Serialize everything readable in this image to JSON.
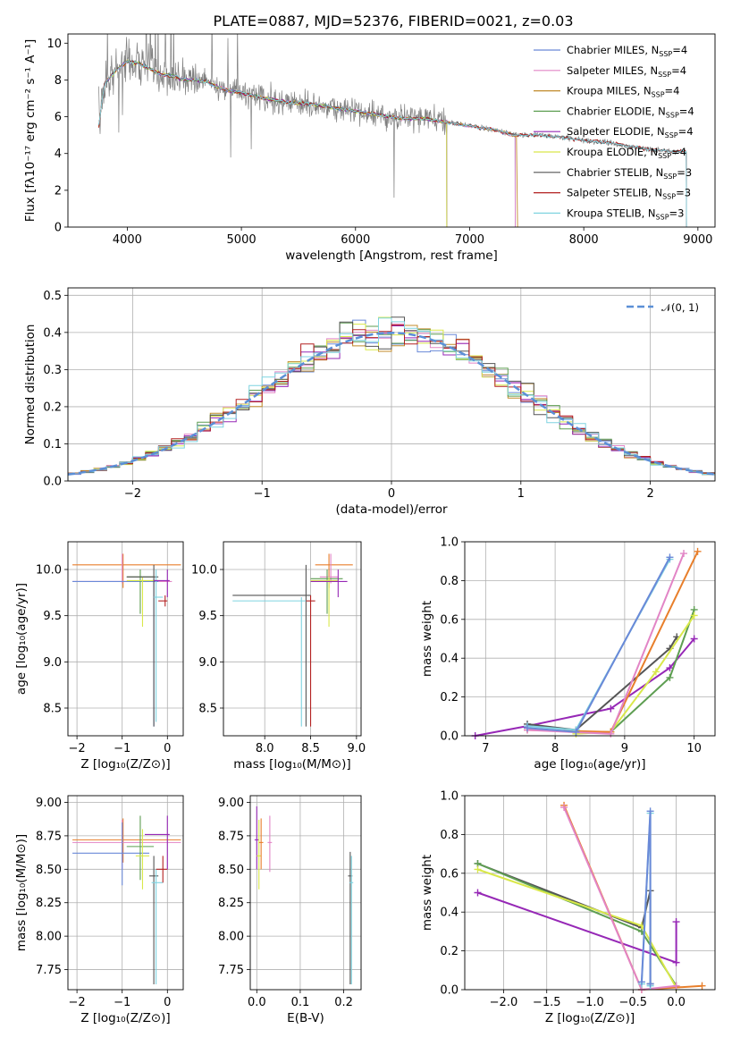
{
  "figure_title": "PLATE=0887, MJD=52376, FIBERID=0021, z=0.03",
  "colors": [
    "#6a89d8",
    "#e285c6",
    "#c08a2a",
    "#5e9e52",
    "#9628b6",
    "#d9e84a",
    "#555555",
    "#b32121",
    "#7fd3e0"
  ],
  "extra_colors": {
    "orange": "#e87f2b",
    "gray": "#808080",
    "normal": "#5b8fd6",
    "grid": "#b0b0b0"
  },
  "chart_data": [
    {
      "id": "spectrum",
      "type": "line",
      "title": "PLATE=0887, MJD=52376, FIBERID=0021, z=0.03",
      "xlabel": "wavelength [Angstrom, rest frame]",
      "ylabel": "Flux [fλ10⁻¹⁷ erg cm⁻² s⁻¹ A⁻¹]",
      "xlim": [
        3480,
        9150
      ],
      "ylim": [
        0,
        10.5
      ],
      "xticks": [
        "4000",
        "5000",
        "6000",
        "7000",
        "8000",
        "9000"
      ],
      "yticks": [
        "0",
        "2",
        "4",
        "6",
        "8",
        "10"
      ],
      "grid": false,
      "legend_position": "top-right",
      "legend": [
        "Chabrier MILES, N_SSP=4",
        "Salpeter MILES, N_SSP=4",
        "Kroupa MILES, N_SSP=4",
        "Chabrier ELODIE, N_SSP=4",
        "Salpeter ELODIE, N_SSP=4",
        "Kroupa ELODIE, N_SSP=4",
        "Chabrier STELIB, N_SSP=3",
        "Salpeter STELIB, N_SSP=3",
        "Kroupa STELIB, N_SSP=3"
      ],
      "data_series": {
        "name": "data",
        "x": [
          3750,
          3800,
          3900,
          4000,
          4100,
          4200,
          4300,
          4400,
          4500,
          4600,
          4700,
          4800,
          4900,
          5000,
          5200,
          5400,
          5600,
          5800,
          6000,
          6200,
          6400,
          6600,
          6800,
          7000,
          7200,
          7400,
          7600,
          7800,
          8000,
          8200,
          8400,
          8600,
          8800
        ],
        "y": [
          5.5,
          7.8,
          8.5,
          9.0,
          8.9,
          8.6,
          8.3,
          8.2,
          8.0,
          8.0,
          7.9,
          7.6,
          7.4,
          7.3,
          7.0,
          6.8,
          6.7,
          6.5,
          6.3,
          6.1,
          5.9,
          5.9,
          5.7,
          5.5,
          5.3,
          5.0,
          5.0,
          4.9,
          4.7,
          4.6,
          4.4,
          4.2,
          4.1
        ]
      },
      "model_series": [
        {
          "name": "Chabrier MILES",
          "x_end": 7400
        },
        {
          "name": "Salpeter MILES",
          "x_end": 7400
        },
        {
          "name": "Kroupa MILES",
          "x_end": 7420
        },
        {
          "name": "Chabrier ELODIE",
          "x_end": 6800
        },
        {
          "name": "Salpeter ELODIE",
          "x_end": 6800
        },
        {
          "name": "Kroupa ELODIE",
          "x_end": 6800
        },
        {
          "name": "Chabrier STELIB",
          "x_end": 8900
        },
        {
          "name": "Salpeter STELIB",
          "x_end": 8900
        },
        {
          "name": "Kroupa STELIB",
          "x_end": 8900
        }
      ]
    },
    {
      "id": "residuals",
      "type": "step",
      "xlabel": "(data-model)/error",
      "ylabel": "Normed distribution",
      "xlim": [
        -2.5,
        2.5
      ],
      "ylim": [
        0,
        0.52
      ],
      "xticks": [
        "−2",
        "−1",
        "0",
        "1",
        "2"
      ],
      "yticks": [
        "0.0",
        "0.1",
        "0.2",
        "0.3",
        "0.4",
        "0.5"
      ],
      "grid": true,
      "legend_position": "top-right",
      "legend": [
        "𝒩(0, 1)"
      ],
      "bin_width": 0.1
    },
    {
      "id": "age_vs_Z",
      "type": "errorbar",
      "xlabel": "Z [log₁₀(Z/Z⊙)]",
      "ylabel": "age  [log₁₀(age/yr)]",
      "xlim": [
        -2.2,
        0.35
      ],
      "ylim": [
        8.2,
        10.3
      ],
      "xticks": [
        "−2",
        "−1",
        "0"
      ],
      "xtick_values": [
        -2,
        -1,
        0
      ],
      "yticks": [
        "8.5",
        "9.0",
        "9.5",
        "10.0"
      ],
      "ytick_values": [
        8.5,
        9.0,
        9.5,
        10.0
      ],
      "grid": true
    },
    {
      "id": "age_vs_mass",
      "type": "errorbar",
      "xlabel": "mass [log₁₀(M/M⊙)]",
      "xlim": [
        7.55,
        9.05
      ],
      "ylim": [
        8.2,
        10.3
      ],
      "xticks": [
        "8.0",
        "8.5",
        "9.0"
      ],
      "xtick_values": [
        8.0,
        8.5,
        9.0
      ],
      "yticks": [
        "8.5",
        "9.0",
        "9.5",
        "10.0"
      ],
      "ytick_values": [
        8.5,
        9.0,
        9.5,
        10.0
      ],
      "grid": true
    },
    {
      "id": "weight_vs_age",
      "type": "line",
      "xlabel": "age  [log₁₀(age/yr)]",
      "ylabel": "mass weight",
      "xlim": [
        6.7,
        10.3
      ],
      "ylim": [
        0,
        1.0
      ],
      "xticks": [
        "7",
        "8",
        "9",
        "10"
      ],
      "xtick_values": [
        7,
        8,
        9,
        10
      ],
      "yticks": [
        "0.0",
        "0.2",
        "0.4",
        "0.6",
        "0.8",
        "1.0"
      ],
      "ytick_values": [
        0,
        0.2,
        0.4,
        0.6,
        0.8,
        1.0
      ],
      "grid": true,
      "series": [
        {
          "color": "#9628b6",
          "x": [
            6.85,
            7.6,
            8.8,
            9.65,
            10.0
          ],
          "y": [
            0.0,
            0.05,
            0.14,
            0.35,
            0.5
          ]
        },
        {
          "color": "#555555",
          "x": [
            7.6,
            8.3,
            9.65,
            9.75
          ],
          "y": [
            0.06,
            0.03,
            0.45,
            0.51
          ]
        },
        {
          "color": "#5e9e52",
          "x": [
            8.3,
            8.8,
            9.65,
            10.0
          ],
          "y": [
            0.02,
            0.02,
            0.3,
            0.65
          ]
        },
        {
          "color": "#d9e84a",
          "x": [
            8.3,
            8.8,
            9.45,
            10.0
          ],
          "y": [
            0.01,
            0.02,
            0.33,
            0.62
          ]
        },
        {
          "color": "#e87f2b",
          "x": [
            7.6,
            8.8,
            10.05
          ],
          "y": [
            0.03,
            0.02,
            0.95
          ]
        },
        {
          "color": "#e285c6",
          "x": [
            7.6,
            8.8,
            9.85
          ],
          "y": [
            0.03,
            0.01,
            0.94
          ]
        },
        {
          "color": "#7fd3e0",
          "x": [
            7.6,
            8.3,
            9.65
          ],
          "y": [
            0.05,
            0.03,
            0.91
          ]
        },
        {
          "color": "#6a89d8",
          "x": [
            7.6,
            8.3,
            9.65
          ],
          "y": [
            0.04,
            0.02,
            0.92
          ]
        }
      ]
    },
    {
      "id": "mass_vs_Z",
      "type": "errorbar",
      "xlabel": "Z [log₁₀(Z/Z⊙)]",
      "ylabel": "mass [log₁₀(M/M⊙)]",
      "xlim": [
        -2.2,
        0.35
      ],
      "ylim": [
        7.6,
        9.05
      ],
      "xticks": [
        "−2",
        "−1",
        "0"
      ],
      "xtick_values": [
        -2,
        -1,
        0
      ],
      "yticks": [
        "7.75",
        "8.00",
        "8.25",
        "8.50",
        "8.75",
        "9.00"
      ],
      "ytick_values": [
        7.75,
        8.0,
        8.25,
        8.5,
        8.75,
        9.0
      ],
      "grid": true
    },
    {
      "id": "mass_vs_EBV",
      "type": "errorbar",
      "xlabel": "E(B-V)",
      "xlim": [
        -0.015,
        0.24
      ],
      "ylim": [
        7.6,
        9.05
      ],
      "xticks": [
        "0.0",
        "0.1",
        "0.2"
      ],
      "xtick_values": [
        0,
        0.1,
        0.2
      ],
      "yticks": [
        "7.75",
        "8.00",
        "8.25",
        "8.50",
        "8.75",
        "9.00"
      ],
      "ytick_values": [
        7.75,
        8.0,
        8.25,
        8.5,
        8.75,
        9.0
      ],
      "grid": true
    },
    {
      "id": "weight_vs_Z",
      "type": "line",
      "xlabel": "Z [log₁₀(Z/Z⊙)]",
      "ylabel": "mass weight",
      "xlim": [
        -2.45,
        0.45
      ],
      "ylim": [
        0,
        1.0
      ],
      "xticks": [
        "−2.0",
        "−1.5",
        "−1.0",
        "−0.5",
        "0.0"
      ],
      "xtick_values": [
        -2,
        -1.5,
        -1,
        -0.5,
        0
      ],
      "yticks": [
        "0.0",
        "0.2",
        "0.4",
        "0.6",
        "0.8",
        "1.0"
      ],
      "ytick_values": [
        0,
        0.2,
        0.4,
        0.6,
        0.8,
        1.0
      ],
      "grid": true,
      "series": [
        {
          "color": "#9628b6",
          "x": [
            -2.3,
            0.0,
            0.0
          ],
          "y": [
            0.5,
            0.14,
            0.35
          ]
        },
        {
          "color": "#555555",
          "x": [
            -2.3,
            -0.4,
            -0.3,
            -0.3
          ],
          "y": [
            0.65,
            0.32,
            0.51,
            0.03
          ]
        },
        {
          "color": "#5e9e52",
          "x": [
            -2.3,
            -0.4,
            0.0
          ],
          "y": [
            0.65,
            0.3,
            0.02
          ]
        },
        {
          "color": "#d9e84a",
          "x": [
            -2.3,
            -0.4,
            0.0
          ],
          "y": [
            0.62,
            0.33,
            0.01
          ]
        },
        {
          "color": "#e87f2b",
          "x": [
            -1.3,
            -0.4,
            0.3
          ],
          "y": [
            0.95,
            0.0,
            0.02
          ]
        },
        {
          "color": "#e285c6",
          "x": [
            -1.3,
            -0.4,
            0.0
          ],
          "y": [
            0.94,
            0.0,
            0.02
          ]
        },
        {
          "color": "#7fd3e0",
          "x": [
            -0.4,
            -0.3,
            -0.3
          ],
          "y": [
            0.03,
            0.91,
            0.02
          ]
        },
        {
          "color": "#6a89d8",
          "x": [
            -0.4,
            -0.3,
            -0.3
          ],
          "y": [
            0.04,
            0.92,
            0.03
          ]
        }
      ]
    }
  ]
}
